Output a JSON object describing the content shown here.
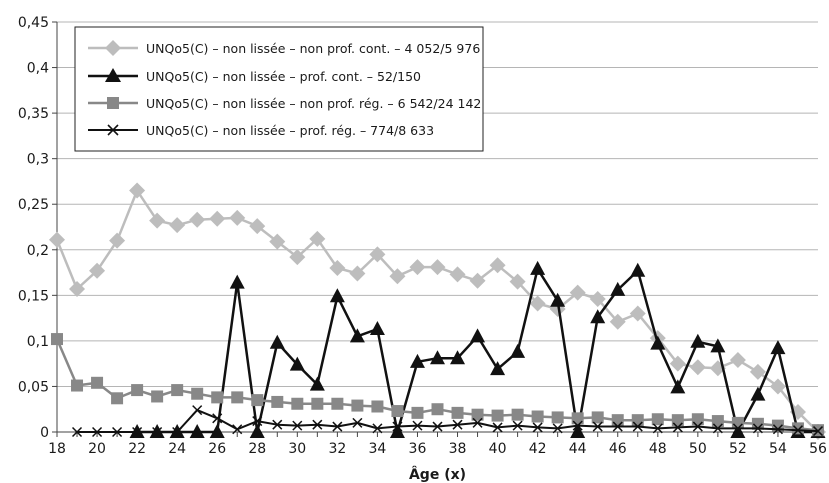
{
  "chart_data": {
    "type": "line",
    "title": "",
    "xlabel": "Âge (x)",
    "ylabel": "",
    "xlim": [
      18,
      56
    ],
    "ylim": [
      0,
      0.45
    ],
    "x_ticks": [
      "18",
      "20",
      "22",
      "24",
      "26",
      "28",
      "30",
      "32",
      "34",
      "36",
      "38",
      "40",
      "42",
      "44",
      "46",
      "48",
      "50",
      "52",
      "54",
      "56"
    ],
    "y_ticks": [
      "0",
      "0,05",
      "0,1",
      "0,15",
      "0,2",
      "0,25",
      "0,3",
      "0,35",
      "0,4",
      "0,45"
    ],
    "grid": "horizontal",
    "legend_position": "top-left",
    "x": [
      18,
      19,
      20,
      21,
      22,
      23,
      24,
      25,
      26,
      27,
      28,
      29,
      30,
      31,
      32,
      33,
      34,
      35,
      36,
      37,
      38,
      39,
      40,
      41,
      42,
      43,
      44,
      45,
      46,
      47,
      48,
      49,
      50,
      51,
      52,
      53,
      54,
      55,
      56
    ],
    "series": [
      {
        "name": "UNQo5(C) – non lissée – non prof. cont. – 4 052/5 976",
        "color": "#bdbdbd",
        "marker": "diamond",
        "values": [
          0.211,
          0.157,
          0.177,
          0.21,
          0.265,
          0.232,
          0.227,
          0.233,
          0.234,
          0.235,
          0.226,
          0.209,
          0.192,
          0.212,
          0.18,
          0.174,
          0.195,
          0.171,
          0.181,
          0.181,
          0.173,
          0.166,
          0.183,
          0.165,
          0.141,
          0.135,
          0.153,
          0.146,
          0.121,
          0.13,
          0.103,
          0.075,
          0.071,
          0.07,
          0.079,
          0.066,
          0.05,
          0.022,
          0.0
        ]
      },
      {
        "name": "UNQo5(C) – non lissée – prof. cont. – 52/150",
        "color": "#111111",
        "marker": "triangle",
        "values": [
          null,
          null,
          null,
          null,
          0.0,
          0.0,
          0.0,
          0.0,
          0.0,
          0.164,
          0.0,
          0.098,
          0.074,
          0.052,
          0.149,
          0.105,
          0.113,
          0.0,
          0.077,
          0.081,
          0.081,
          0.105,
          0.069,
          0.088,
          0.179,
          0.144,
          0.0,
          0.126,
          0.156,
          0.177,
          0.097,
          0.049,
          0.099,
          0.094,
          0.0,
          0.041,
          0.092,
          0.0,
          0.0
        ]
      },
      {
        "name": "UNQo5(C) – non lissée – non prof. rég. – 6 542/24 142",
        "color": "#888888",
        "marker": "square",
        "values": [
          0.102,
          0.051,
          0.054,
          0.037,
          0.046,
          0.039,
          0.046,
          0.042,
          0.038,
          0.038,
          0.035,
          0.033,
          0.031,
          0.031,
          0.031,
          0.029,
          0.028,
          0.023,
          0.021,
          0.025,
          0.021,
          0.019,
          0.018,
          0.019,
          0.017,
          0.016,
          0.015,
          0.016,
          0.013,
          0.013,
          0.014,
          0.013,
          0.014,
          0.012,
          0.01,
          0.009,
          0.007,
          0.004,
          0.002
        ]
      },
      {
        "name": "UNQo5(C) – non lissée – prof. rég. – 774/8 633",
        "color": "#111111",
        "marker": "x",
        "values": [
          null,
          0.0,
          0.0,
          0.0,
          0.0,
          0.0,
          0.0,
          0.024,
          0.015,
          0.003,
          0.012,
          0.008,
          0.007,
          0.008,
          0.006,
          0.01,
          0.004,
          0.006,
          0.007,
          0.006,
          0.008,
          0.01,
          0.005,
          0.007,
          0.005,
          0.004,
          0.007,
          0.006,
          0.006,
          0.006,
          0.004,
          0.005,
          0.006,
          0.004,
          0.004,
          0.004,
          0.003,
          0.002,
          0.001
        ]
      }
    ]
  }
}
